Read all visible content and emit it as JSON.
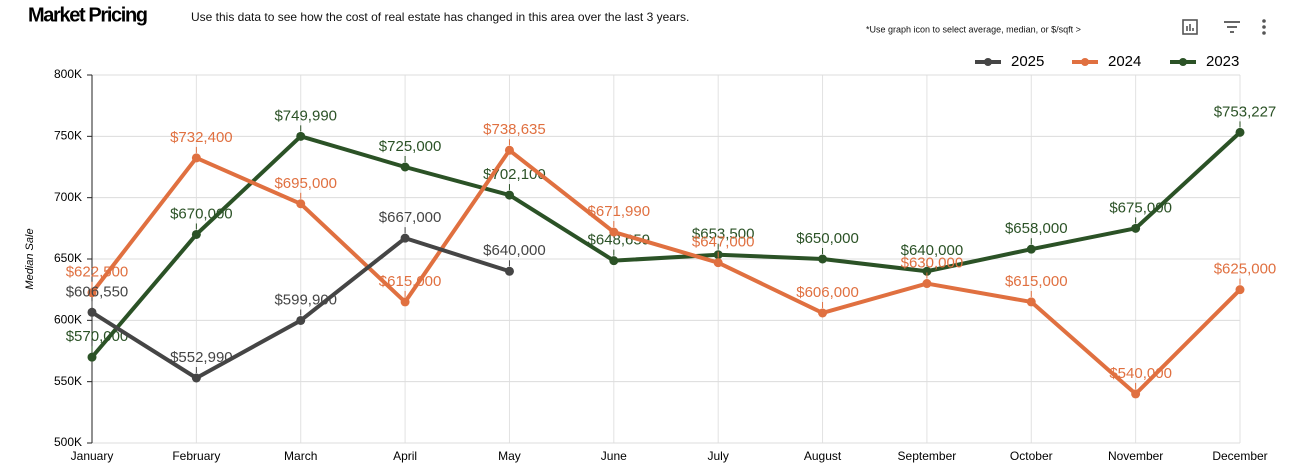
{
  "chart_data": {
    "type": "line",
    "title": "Market Pricing",
    "subtitle": "Use this data to see how the cost of real estate has changed in this area over the last 3 years.",
    "note": "*Use graph icon to  select average, median, or $/sqft >",
    "y_label": "Median Sale",
    "categories": [
      "January",
      "February",
      "March",
      "April",
      "May",
      "June",
      "July",
      "August",
      "September",
      "October",
      "November",
      "December"
    ],
    "series": [
      {
        "name": "2025",
        "color": "#454545",
        "values": [
          606550,
          552990,
          599900,
          667000,
          640000,
          null,
          null,
          null,
          null,
          null,
          null,
          null
        ],
        "value_labels": [
          "$606,550",
          "$552,990",
          "$599,900",
          "$667,000",
          "$640,000",
          null,
          null,
          null,
          null,
          null,
          null,
          null
        ]
      },
      {
        "name": "2024",
        "color": "#e07040",
        "values": [
          622500,
          732400,
          695000,
          615000,
          738635,
          671990,
          647000,
          606000,
          630000,
          615000,
          540000,
          625000
        ],
        "value_labels": [
          "$622,500",
          "$732,400",
          "$695,000",
          "$615,000",
          "$738,635",
          "$671,990",
          "$647,000",
          "$606,000",
          "$630,000",
          "$615,000",
          "$540,000",
          "$625,000"
        ]
      },
      {
        "name": "2023",
        "color": "#2b5226",
        "values": [
          570000,
          670000,
          749990,
          725000,
          702100,
          648659,
          653500,
          650000,
          640000,
          658000,
          675000,
          753227
        ],
        "value_labels": [
          "$570,000",
          "$670,000",
          "$749,990",
          "$725,000",
          "$702,100",
          "$648,659",
          "$653,500",
          "$650,000",
          "$640,000",
          "$658,000",
          "$675,000",
          "$753,227"
        ]
      }
    ],
    "ylim": [
      500000,
      800000
    ],
    "yticks": [
      {
        "value": 500000,
        "label": "500K"
      },
      {
        "value": 550000,
        "label": "550K"
      },
      {
        "value": 600000,
        "label": "600K"
      },
      {
        "value": 650000,
        "label": "650K"
      },
      {
        "value": 700000,
        "label": "700K"
      },
      {
        "value": 750000,
        "label": "750K"
      },
      {
        "value": 800000,
        "label": "800K"
      }
    ],
    "grid": true,
    "legend": "top-right"
  }
}
